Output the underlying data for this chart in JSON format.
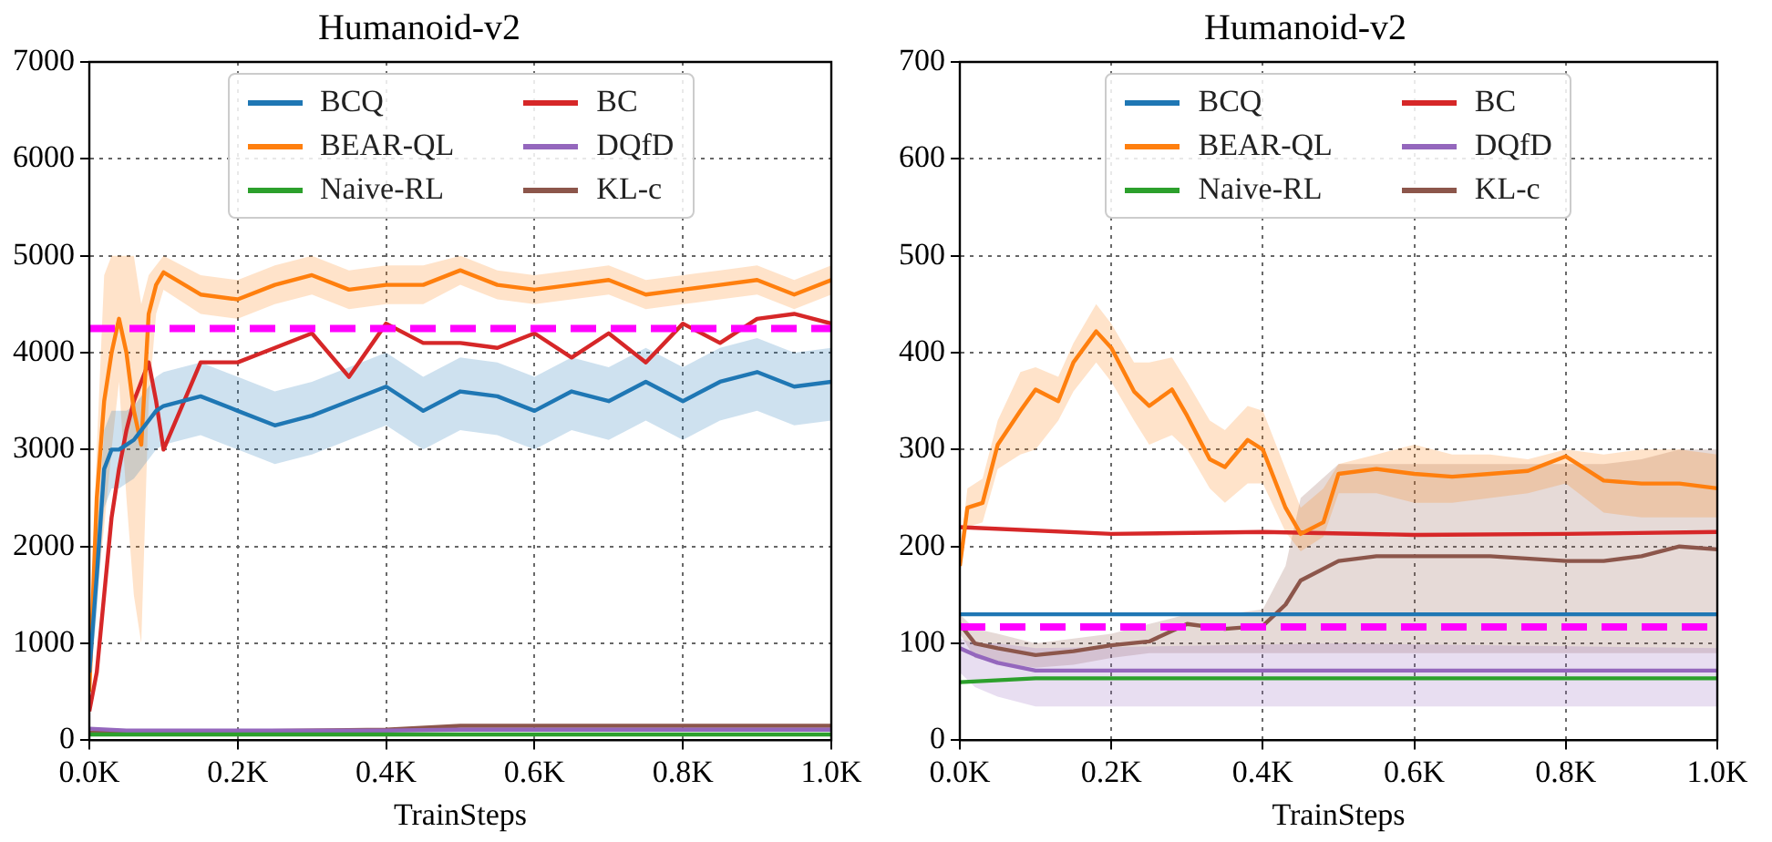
{
  "chart_data": [
    {
      "type": "line",
      "title": "Humanoid-v2",
      "xlabel": "TrainSteps",
      "xlim": [
        0,
        1
      ],
      "ylim": [
        0,
        7000
      ],
      "xticks": [
        {
          "value": 0,
          "label": "0.0K"
        },
        {
          "value": 0.2,
          "label": "0.2K"
        },
        {
          "value": 0.4,
          "label": "0.4K"
        },
        {
          "value": 0.6,
          "label": "0.6K"
        },
        {
          "value": 0.8,
          "label": "0.8K"
        },
        {
          "value": 1,
          "label": "1.0K"
        }
      ],
      "yticks": [
        0,
        1000,
        2000,
        3000,
        4000,
        5000,
        6000,
        7000
      ],
      "grid": true,
      "legend": "top",
      "marker": "none",
      "line_style": "solid",
      "ref_lines": [
        {
          "axis": "y",
          "value": 4250,
          "color": "#ff00ff",
          "line_style": "dashed"
        }
      ],
      "series": [
        {
          "name": "BCQ",
          "color": "#1f77b4",
          "x": [
            0,
            0.01,
            0.02,
            0.03,
            0.04,
            0.05,
            0.06,
            0.07,
            0.08,
            0.09,
            0.1,
            0.15,
            0.2,
            0.25,
            0.3,
            0.35,
            0.4,
            0.45,
            0.5,
            0.55,
            0.6,
            0.65,
            0.7,
            0.75,
            0.8,
            0.85,
            0.9,
            0.95,
            1.0
          ],
          "values": [
            700,
            1700,
            2800,
            3000,
            3000,
            3050,
            3100,
            3200,
            3300,
            3400,
            3450,
            3550,
            3400,
            3250,
            3350,
            3500,
            3650,
            3400,
            3600,
            3550,
            3400,
            3600,
            3500,
            3700,
            3500,
            3700,
            3800,
            3650,
            3700
          ],
          "lower": [
            500,
            1300,
            2400,
            2600,
            2600,
            2650,
            2700,
            2800,
            2900,
            3000,
            3050,
            3150,
            3000,
            2850,
            2950,
            3100,
            3250,
            3000,
            3200,
            3150,
            3000,
            3200,
            3100,
            3300,
            3100,
            3300,
            3400,
            3250,
            3300
          ],
          "upper": [
            900,
            2100,
            3200,
            3400,
            3400,
            3400,
            3450,
            3550,
            3650,
            3750,
            3800,
            3900,
            3750,
            3600,
            3700,
            3850,
            4000,
            3750,
            3950,
            3900,
            3750,
            3950,
            3850,
            4050,
            3850,
            4050,
            4150,
            4000,
            4050
          ]
        },
        {
          "name": "BEAR-QL",
          "color": "#ff7f0e",
          "x": [
            0,
            0.01,
            0.02,
            0.03,
            0.04,
            0.05,
            0.06,
            0.07,
            0.08,
            0.09,
            0.1,
            0.15,
            0.2,
            0.25,
            0.3,
            0.35,
            0.4,
            0.45,
            0.5,
            0.55,
            0.6,
            0.65,
            0.7,
            0.75,
            0.8,
            0.85,
            0.9,
            0.95,
            1.0
          ],
          "values": [
            500,
            2500,
            3500,
            4000,
            4350,
            4000,
            3400,
            3050,
            4400,
            4700,
            4830,
            4600,
            4550,
            4700,
            4800,
            4650,
            4700,
            4700,
            4850,
            4700,
            4650,
            4700,
            4750,
            4600,
            4650,
            4700,
            4750,
            4600,
            4750
          ],
          "lower": [
            300,
            1500,
            2200,
            3000,
            3700,
            2500,
            1500,
            1000,
            3500,
            4400,
            4650,
            4400,
            4350,
            4500,
            4600,
            4450,
            4500,
            4500,
            4700,
            4550,
            4500,
            4550,
            4600,
            4450,
            4500,
            4550,
            4600,
            4450,
            4600
          ],
          "upper": [
            800,
            3000,
            4800,
            5000,
            5000,
            5000,
            5000,
            4500,
            4800,
            4900,
            5000,
            4800,
            4750,
            4900,
            5000,
            4850,
            4900,
            4900,
            5000,
            4850,
            4800,
            4850,
            4900,
            4750,
            4800,
            4850,
            4900,
            4750,
            4900
          ]
        },
        {
          "name": "Naive-RL",
          "color": "#2ca02c",
          "x": [
            0,
            0.05,
            0.4,
            0.5,
            1.0
          ],
          "values": [
            60,
            60,
            60,
            60,
            60
          ]
        },
        {
          "name": "BC",
          "color": "#d62728",
          "x": [
            0,
            0.01,
            0.02,
            0.03,
            0.04,
            0.05,
            0.06,
            0.07,
            0.08,
            0.09,
            0.1,
            0.15,
            0.2,
            0.25,
            0.3,
            0.35,
            0.4,
            0.45,
            0.5,
            0.55,
            0.6,
            0.65,
            0.7,
            0.75,
            0.8,
            0.85,
            0.9,
            0.95,
            1.0
          ],
          "values": [
            300,
            700,
            1500,
            2300,
            2800,
            3200,
            3500,
            3700,
            3900,
            3500,
            3000,
            3900,
            3900,
            4050,
            4200,
            3750,
            4300,
            4100,
            4100,
            4050,
            4200,
            3950,
            4200,
            3900,
            4300,
            4100,
            4350,
            4400,
            4300
          ]
        },
        {
          "name": "DQfD",
          "color": "#9467bd",
          "x": [
            0,
            0.05,
            0.4,
            0.5,
            1.0
          ],
          "values": [
            120,
            100,
            100,
            110,
            110
          ]
        },
        {
          "name": "KL-c",
          "color": "#8c564b",
          "x": [
            0,
            0.05,
            0.4,
            0.5,
            1.0
          ],
          "values": [
            80,
            80,
            110,
            150,
            150
          ]
        }
      ]
    },
    {
      "type": "line",
      "title": "Humanoid-v2",
      "xlabel": "TrainSteps",
      "xlim": [
        0,
        1
      ],
      "ylim": [
        0,
        700
      ],
      "xticks": [
        {
          "value": 0,
          "label": "0.0K"
        },
        {
          "value": 0.2,
          "label": "0.2K"
        },
        {
          "value": 0.4,
          "label": "0.4K"
        },
        {
          "value": 0.6,
          "label": "0.6K"
        },
        {
          "value": 0.8,
          "label": "0.8K"
        },
        {
          "value": 1,
          "label": "1.0K"
        }
      ],
      "yticks": [
        0,
        100,
        200,
        300,
        400,
        500,
        600,
        700
      ],
      "grid": true,
      "legend": "top",
      "marker": "none",
      "line_style": "solid",
      "ref_lines": [
        {
          "axis": "y",
          "value": 117,
          "color": "#ff00ff",
          "line_style": "dashed"
        }
      ],
      "series": [
        {
          "name": "BCQ",
          "color": "#1f77b4",
          "x": [
            0,
            1.0
          ],
          "values": [
            130,
            130
          ]
        },
        {
          "name": "BEAR-QL",
          "color": "#ff7f0e",
          "x": [
            0,
            0.01,
            0.03,
            0.05,
            0.08,
            0.1,
            0.13,
            0.15,
            0.18,
            0.2,
            0.23,
            0.25,
            0.28,
            0.3,
            0.33,
            0.35,
            0.38,
            0.4,
            0.43,
            0.45,
            0.48,
            0.5,
            0.55,
            0.6,
            0.65,
            0.7,
            0.75,
            0.8,
            0.85,
            0.9,
            0.95,
            1.0
          ],
          "values": [
            180,
            240,
            245,
            305,
            340,
            362,
            350,
            390,
            422,
            405,
            360,
            345,
            362,
            335,
            290,
            282,
            310,
            300,
            240,
            213,
            225,
            275,
            280,
            275,
            272,
            275,
            278,
            293,
            268,
            265,
            265,
            260
          ],
          "lower": [
            170,
            220,
            225,
            280,
            295,
            300,
            330,
            360,
            390,
            370,
            330,
            305,
            315,
            300,
            260,
            245,
            265,
            265,
            215,
            195,
            210,
            255,
            255,
            245,
            245,
            250,
            255,
            265,
            235,
            230,
            230,
            230
          ],
          "upper": [
            190,
            260,
            270,
            330,
            380,
            385,
            375,
            410,
            450,
            430,
            390,
            390,
            395,
            370,
            330,
            320,
            345,
            340,
            280,
            240,
            260,
            285,
            295,
            305,
            295,
            295,
            290,
            300,
            295,
            300,
            300,
            295
          ]
        },
        {
          "name": "Naive-RL",
          "color": "#2ca02c",
          "x": [
            0,
            0.1,
            1.0
          ],
          "values": [
            60,
            64,
            64
          ]
        },
        {
          "name": "BC",
          "color": "#d62728",
          "x": [
            0,
            0.2,
            0.4,
            0.6,
            0.8,
            1.0
          ],
          "values": [
            220,
            213,
            215,
            212,
            213,
            215
          ]
        },
        {
          "name": "DQfD",
          "color": "#9467bd",
          "x": [
            0,
            0.02,
            0.05,
            0.1,
            0.5,
            1.0
          ],
          "values": [
            95,
            88,
            80,
            72,
            72,
            72
          ],
          "lower": [
            70,
            55,
            45,
            35,
            35,
            35
          ],
          "upper": [
            105,
            100,
            100,
            95,
            100,
            95
          ]
        },
        {
          "name": "KL-c",
          "color": "#8c564b",
          "x": [
            0,
            0.02,
            0.05,
            0.1,
            0.15,
            0.2,
            0.25,
            0.3,
            0.35,
            0.4,
            0.43,
            0.45,
            0.5,
            0.55,
            0.6,
            0.7,
            0.8,
            0.85,
            0.9,
            0.95,
            1.0
          ],
          "values": [
            120,
            100,
            95,
            88,
            92,
            98,
            102,
            120,
            115,
            118,
            140,
            165,
            185,
            190,
            190,
            190,
            185,
            185,
            190,
            200,
            197
          ],
          "lower": [
            110,
            85,
            80,
            75,
            78,
            85,
            90,
            90,
            90,
            90,
            90,
            90,
            90,
            90,
            90,
            90,
            90,
            90,
            90,
            90,
            90
          ],
          "upper": [
            130,
            115,
            110,
            100,
            105,
            110,
            120,
            130,
            130,
            135,
            180,
            250,
            285,
            285,
            285,
            285,
            285,
            285,
            290,
            300,
            300
          ]
        }
      ]
    }
  ]
}
